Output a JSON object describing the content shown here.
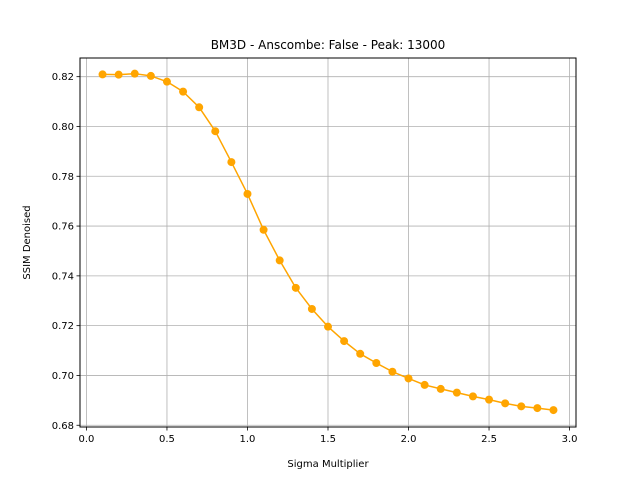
{
  "chart_data": {
    "type": "line",
    "title": "BM3D - Anscombe: False - Peak: 13000",
    "xlabel": "Sigma Multiplier",
    "ylabel": "SSIM Denoised",
    "xlim": [
      -0.04,
      3.04
    ],
    "ylim": [
      0.6793,
      0.8275
    ],
    "xticks": [
      0.0,
      0.5,
      1.0,
      1.5,
      2.0,
      2.5,
      3.0
    ],
    "xtick_labels": [
      "0.0",
      "0.5",
      "1.0",
      "1.5",
      "2.0",
      "2.5",
      "3.0"
    ],
    "yticks": [
      0.68,
      0.7,
      0.72,
      0.74,
      0.76,
      0.78,
      0.8,
      0.82
    ],
    "ytick_labels": [
      "0.68",
      "0.70",
      "0.72",
      "0.74",
      "0.76",
      "0.78",
      "0.80",
      "0.82"
    ],
    "grid": true,
    "color": "#ffa500",
    "marker": "circle",
    "series": [
      {
        "x": [
          0.1,
          0.2,
          0.3,
          0.4,
          0.5,
          0.6,
          0.7,
          0.8,
          0.9,
          1.0,
          1.1,
          1.2,
          1.3,
          1.4,
          1.5,
          1.6,
          1.7,
          1.8,
          1.9,
          2.0,
          2.1,
          2.2,
          2.3,
          2.4,
          2.5,
          2.6,
          2.7,
          2.8,
          2.9
        ],
        "y": [
          0.8209,
          0.8208,
          0.8212,
          0.8203,
          0.818,
          0.814,
          0.8077,
          0.7981,
          0.7857,
          0.7729,
          0.7585,
          0.7462,
          0.7352,
          0.7267,
          0.7196,
          0.7138,
          0.7087,
          0.705,
          0.7015,
          0.6988,
          0.6962,
          0.6946,
          0.6931,
          0.6916,
          0.6903,
          0.6888,
          0.6876,
          0.6869,
          0.6861
        ]
      }
    ]
  }
}
